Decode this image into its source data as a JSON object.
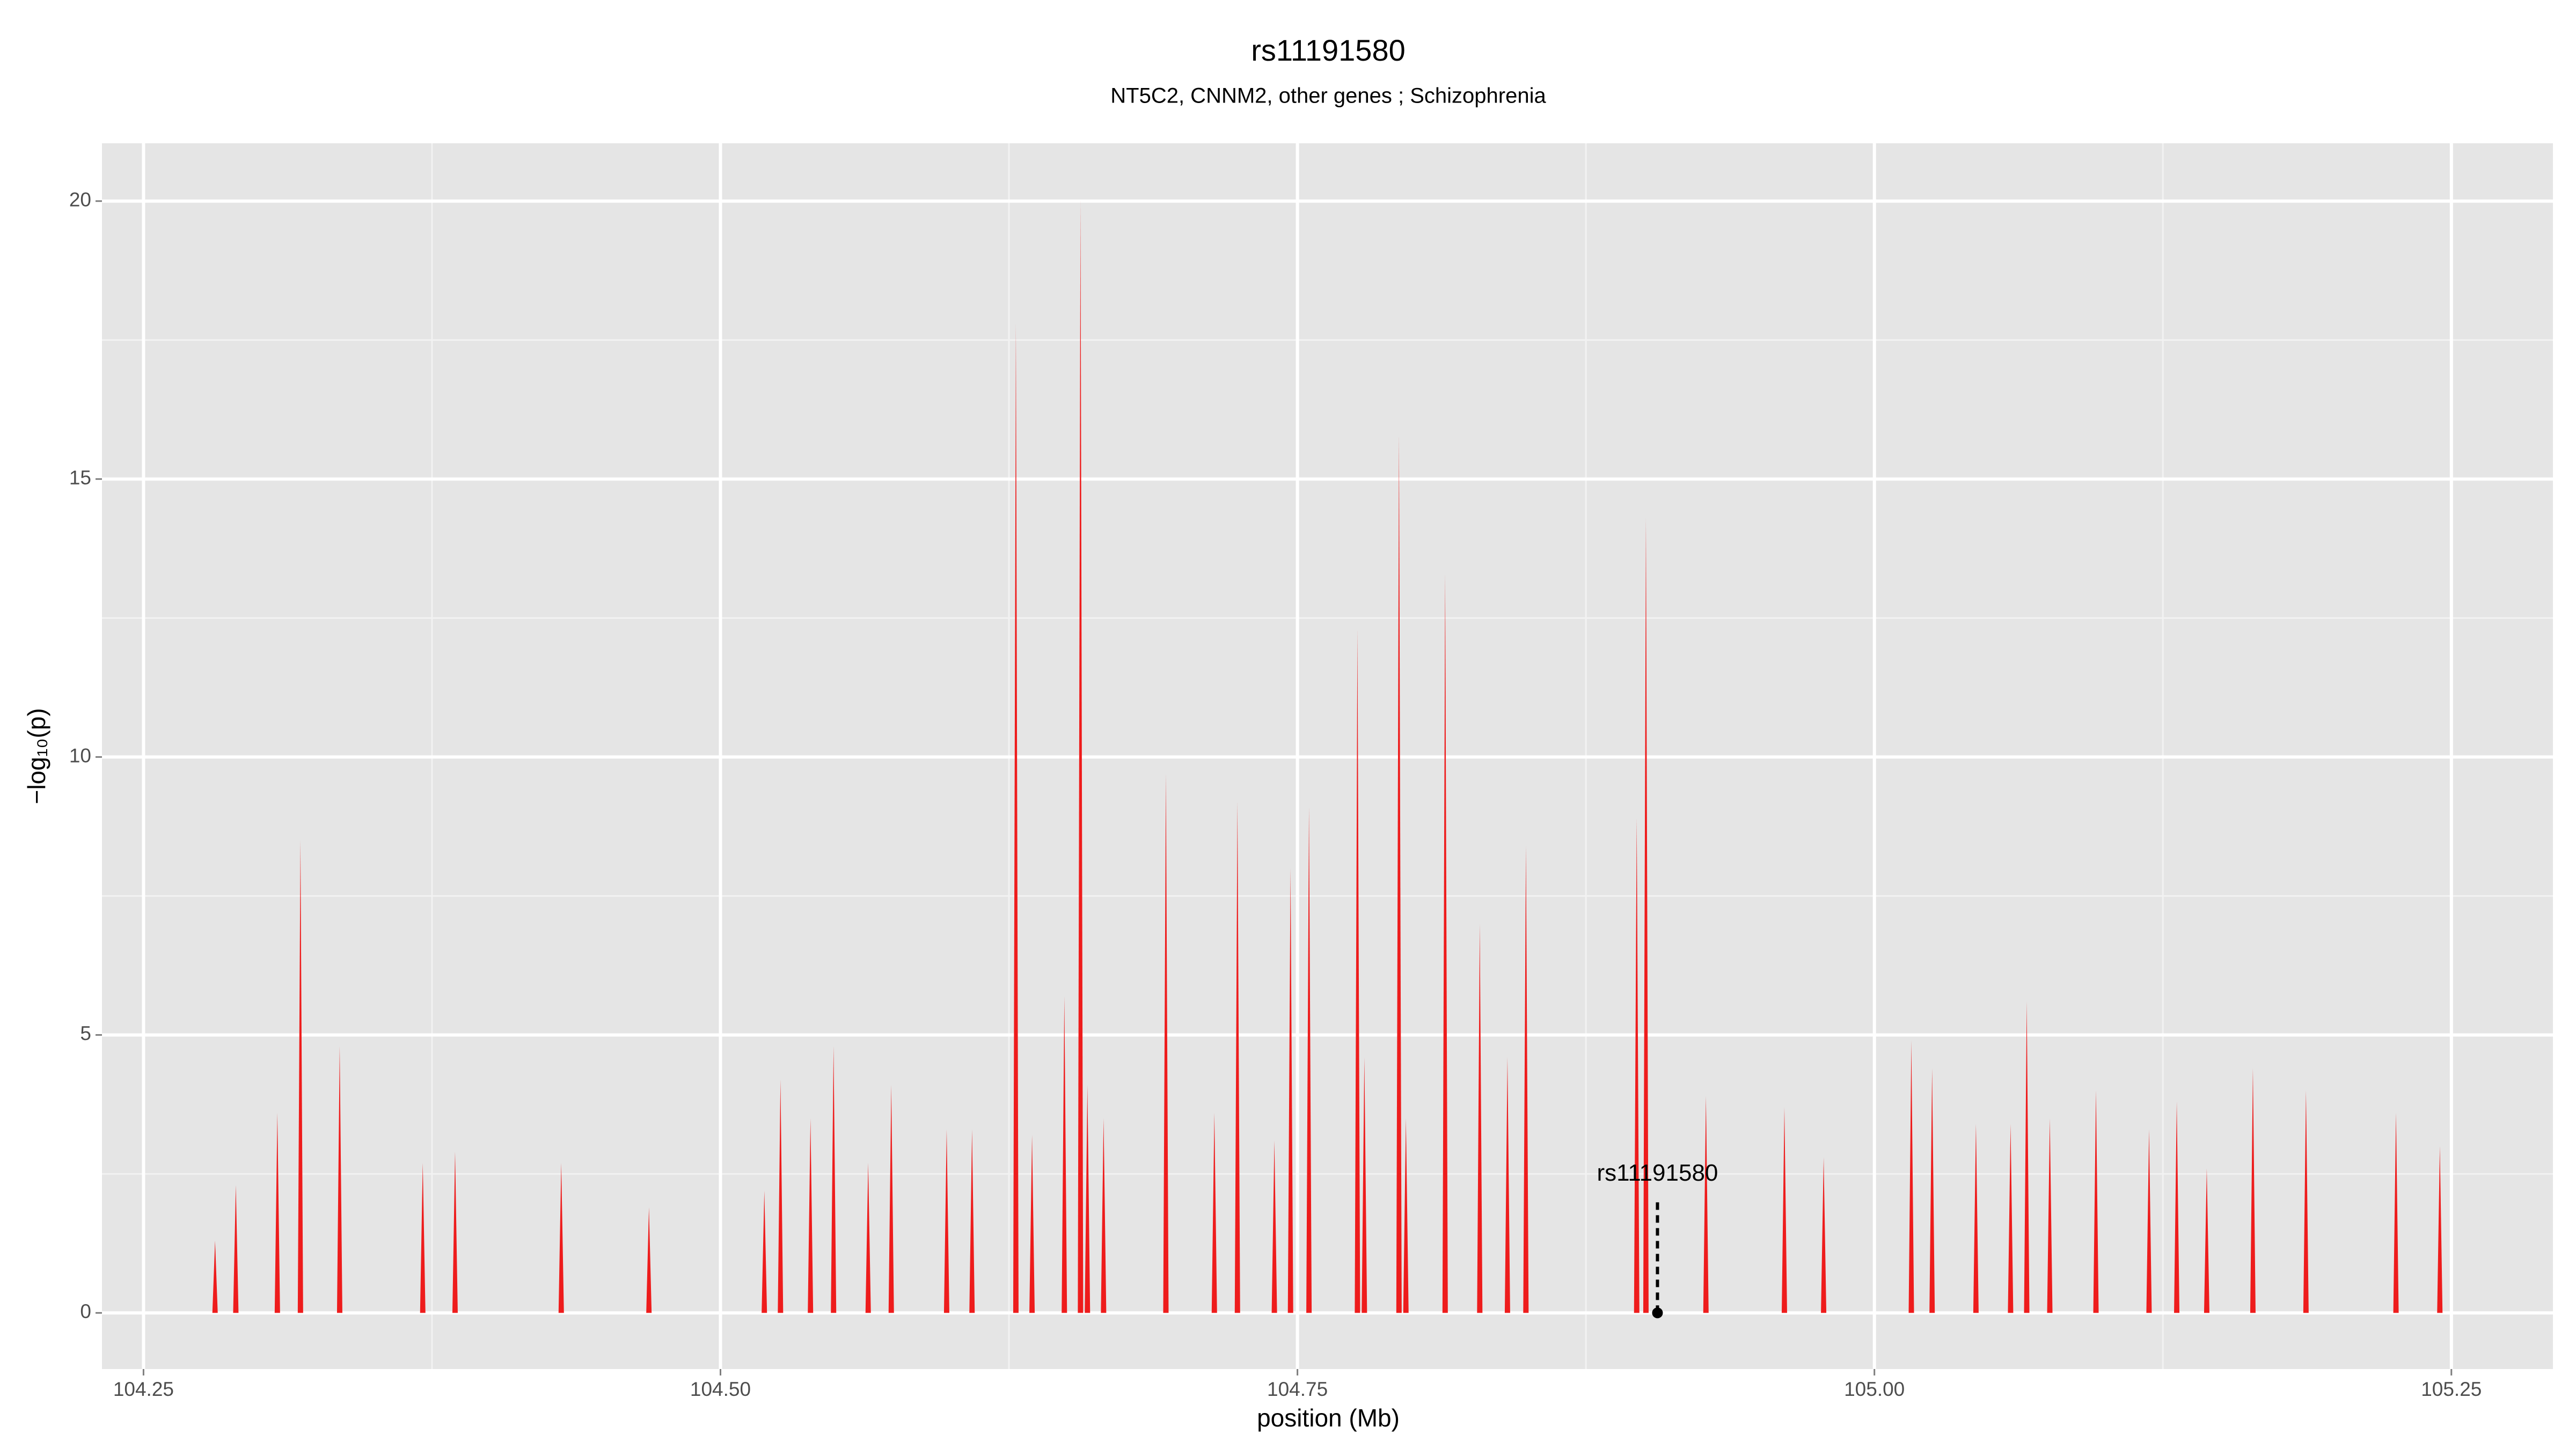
{
  "chart_data": {
    "type": "spike",
    "title": "rs11191580",
    "subtitle": "NT5C2, CNNM2, other genes ; Schizophrenia",
    "x_label": "position (Mb)",
    "y_label": "−log₁₀(p)",
    "color": "#ee1c1c",
    "x": [
      104.281,
      104.29,
      104.308,
      104.318,
      104.335,
      104.371,
      104.385,
      104.431,
      104.469,
      104.519,
      104.526,
      104.539,
      104.549,
      104.564,
      104.574,
      104.598,
      104.609,
      104.628,
      104.635,
      104.649,
      104.656,
      104.659,
      104.666,
      104.693,
      104.714,
      104.724,
      104.74,
      104.747,
      104.755,
      104.776,
      104.779,
      104.794,
      104.797,
      104.814,
      104.829,
      104.841,
      104.849,
      104.897,
      104.901,
      104.927,
      104.961,
      104.978,
      105.016,
      105.025,
      105.044,
      105.059,
      105.066,
      105.076,
      105.096,
      105.119,
      105.131,
      105.144,
      105.164,
      105.187,
      105.226,
      105.245
    ],
    "values": [
      1.3,
      2.3,
      3.6,
      8.5,
      4.8,
      2.7,
      2.9,
      2.7,
      1.9,
      2.2,
      4.2,
      3.5,
      4.8,
      2.7,
      4.1,
      3.3,
      3.3,
      17.8,
      3.2,
      5.7,
      20,
      4.1,
      3.5,
      9.7,
      3.6,
      9.2,
      3.1,
      8.0,
      9.1,
      12.3,
      4.6,
      15.8,
      3.5,
      13.3,
      7.0,
      4.6,
      8.4,
      8.9,
      14.3,
      3.9,
      3.7,
      2.8,
      4.9,
      4.4,
      3.4,
      3.4,
      5.6,
      3.5,
      4.0,
      3.3,
      3.8,
      2.6,
      4.4,
      4.0,
      3.6,
      3.0
    ],
    "annotation": {
      "text": "rs11191580",
      "x": 104.906,
      "y": 0
    },
    "xlim": [
      104.232,
      105.294
    ],
    "ylim": [
      -1.01,
      21.04
    ],
    "xticks": [
      {
        "value": 104.25,
        "label": "104.25"
      },
      {
        "value": 104.5,
        "label": "104.50"
      },
      {
        "value": 104.75,
        "label": "104.75"
      },
      {
        "value": 105.0,
        "label": "105.00"
      },
      {
        "value": 105.25,
        "label": "105.25"
      }
    ],
    "yticks": [
      0,
      5,
      10,
      15,
      20
    ],
    "grid": true
  }
}
